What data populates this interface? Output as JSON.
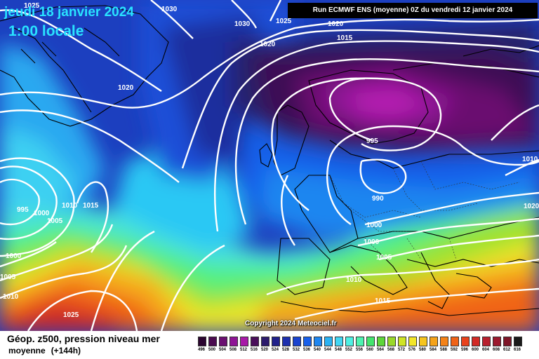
{
  "header": {
    "date": "jeudi 18 janvier 2024",
    "time": "1:00 locale",
    "run_info": "Run ECMWF ENS (moyenne) 0Z du vendredi 12 janvier 2024"
  },
  "copyright": "Copyright 2024 Meteociel.fr",
  "legend": {
    "title": "Géop. z500, pression niveau mer",
    "subtitle": "moyenne",
    "hours": "(+144h)",
    "scale": [
      {
        "v": "496",
        "c": "#2b0530"
      },
      {
        "v": "500",
        "c": "#4a0b4f"
      },
      {
        "v": "504",
        "c": "#6a1070"
      },
      {
        "v": "508",
        "c": "#8e1595"
      },
      {
        "v": "512",
        "c": "#a81aa8"
      },
      {
        "v": "516",
        "c": "#4a0f5a"
      },
      {
        "v": "520",
        "c": "#2c1b6c"
      },
      {
        "v": "524",
        "c": "#20208a"
      },
      {
        "v": "528",
        "c": "#1d2fae"
      },
      {
        "v": "532",
        "c": "#1a43cf"
      },
      {
        "v": "536",
        "c": "#1960ea"
      },
      {
        "v": "540",
        "c": "#1f86f0"
      },
      {
        "v": "544",
        "c": "#2bb2f2"
      },
      {
        "v": "548",
        "c": "#42d6f3"
      },
      {
        "v": "552",
        "c": "#4ff0e3"
      },
      {
        "v": "556",
        "c": "#4ef3b0"
      },
      {
        "v": "560",
        "c": "#44e56e"
      },
      {
        "v": "564",
        "c": "#5fd63a"
      },
      {
        "v": "568",
        "c": "#9ad82a"
      },
      {
        "v": "572",
        "c": "#d0e426"
      },
      {
        "v": "576",
        "c": "#f3e629"
      },
      {
        "v": "580",
        "c": "#f6c51f"
      },
      {
        "v": "584",
        "c": "#f5a31a"
      },
      {
        "v": "588",
        "c": "#f48218"
      },
      {
        "v": "592",
        "c": "#f06318"
      },
      {
        "v": "596",
        "c": "#e8421c"
      },
      {
        "v": "600",
        "c": "#d22a26"
      },
      {
        "v": "604",
        "c": "#b81f2d"
      },
      {
        "v": "608",
        "c": "#9c1a2f"
      },
      {
        "v": "612",
        "c": "#7e1628"
      },
      {
        "v": "616",
        "c": "#1a1a1a"
      }
    ]
  },
  "isobars": [
    {
      "v": "1025",
      "pos": "nw-top"
    },
    {
      "v": "1030",
      "pos": "n-top"
    },
    {
      "v": "1030",
      "pos": "n-mid"
    },
    {
      "v": "1025",
      "pos": "ne-top"
    },
    {
      "v": "1020",
      "pos": "n-right"
    },
    {
      "v": "1020",
      "pos": "n-left"
    },
    {
      "v": "1015",
      "pos": "n-right2"
    },
    {
      "v": "1020",
      "pos": "greenland"
    },
    {
      "v": "995",
      "pos": "scandinavia"
    },
    {
      "v": "1010",
      "pos": "east-edge"
    },
    {
      "v": "1020",
      "pos": "east-edge2"
    },
    {
      "v": "995",
      "pos": "west"
    },
    {
      "v": "1000",
      "pos": "west2"
    },
    {
      "v": "1005",
      "pos": "west3"
    },
    {
      "v": "1010",
      "pos": "west4"
    },
    {
      "v": "1015",
      "pos": "west5"
    },
    {
      "v": "990",
      "pos": "baltic"
    },
    {
      "v": "1000",
      "pos": "central"
    },
    {
      "v": "1000",
      "pos": "central2"
    },
    {
      "v": "1005",
      "pos": "central3"
    },
    {
      "v": "1000",
      "pos": "sw1"
    },
    {
      "v": "1005",
      "pos": "sw2"
    },
    {
      "v": "1010",
      "pos": "sw3"
    },
    {
      "v": "1025",
      "pos": "azores"
    },
    {
      "v": "1010",
      "pos": "iberia"
    },
    {
      "v": "1015",
      "pos": "mediterranean"
    }
  ]
}
